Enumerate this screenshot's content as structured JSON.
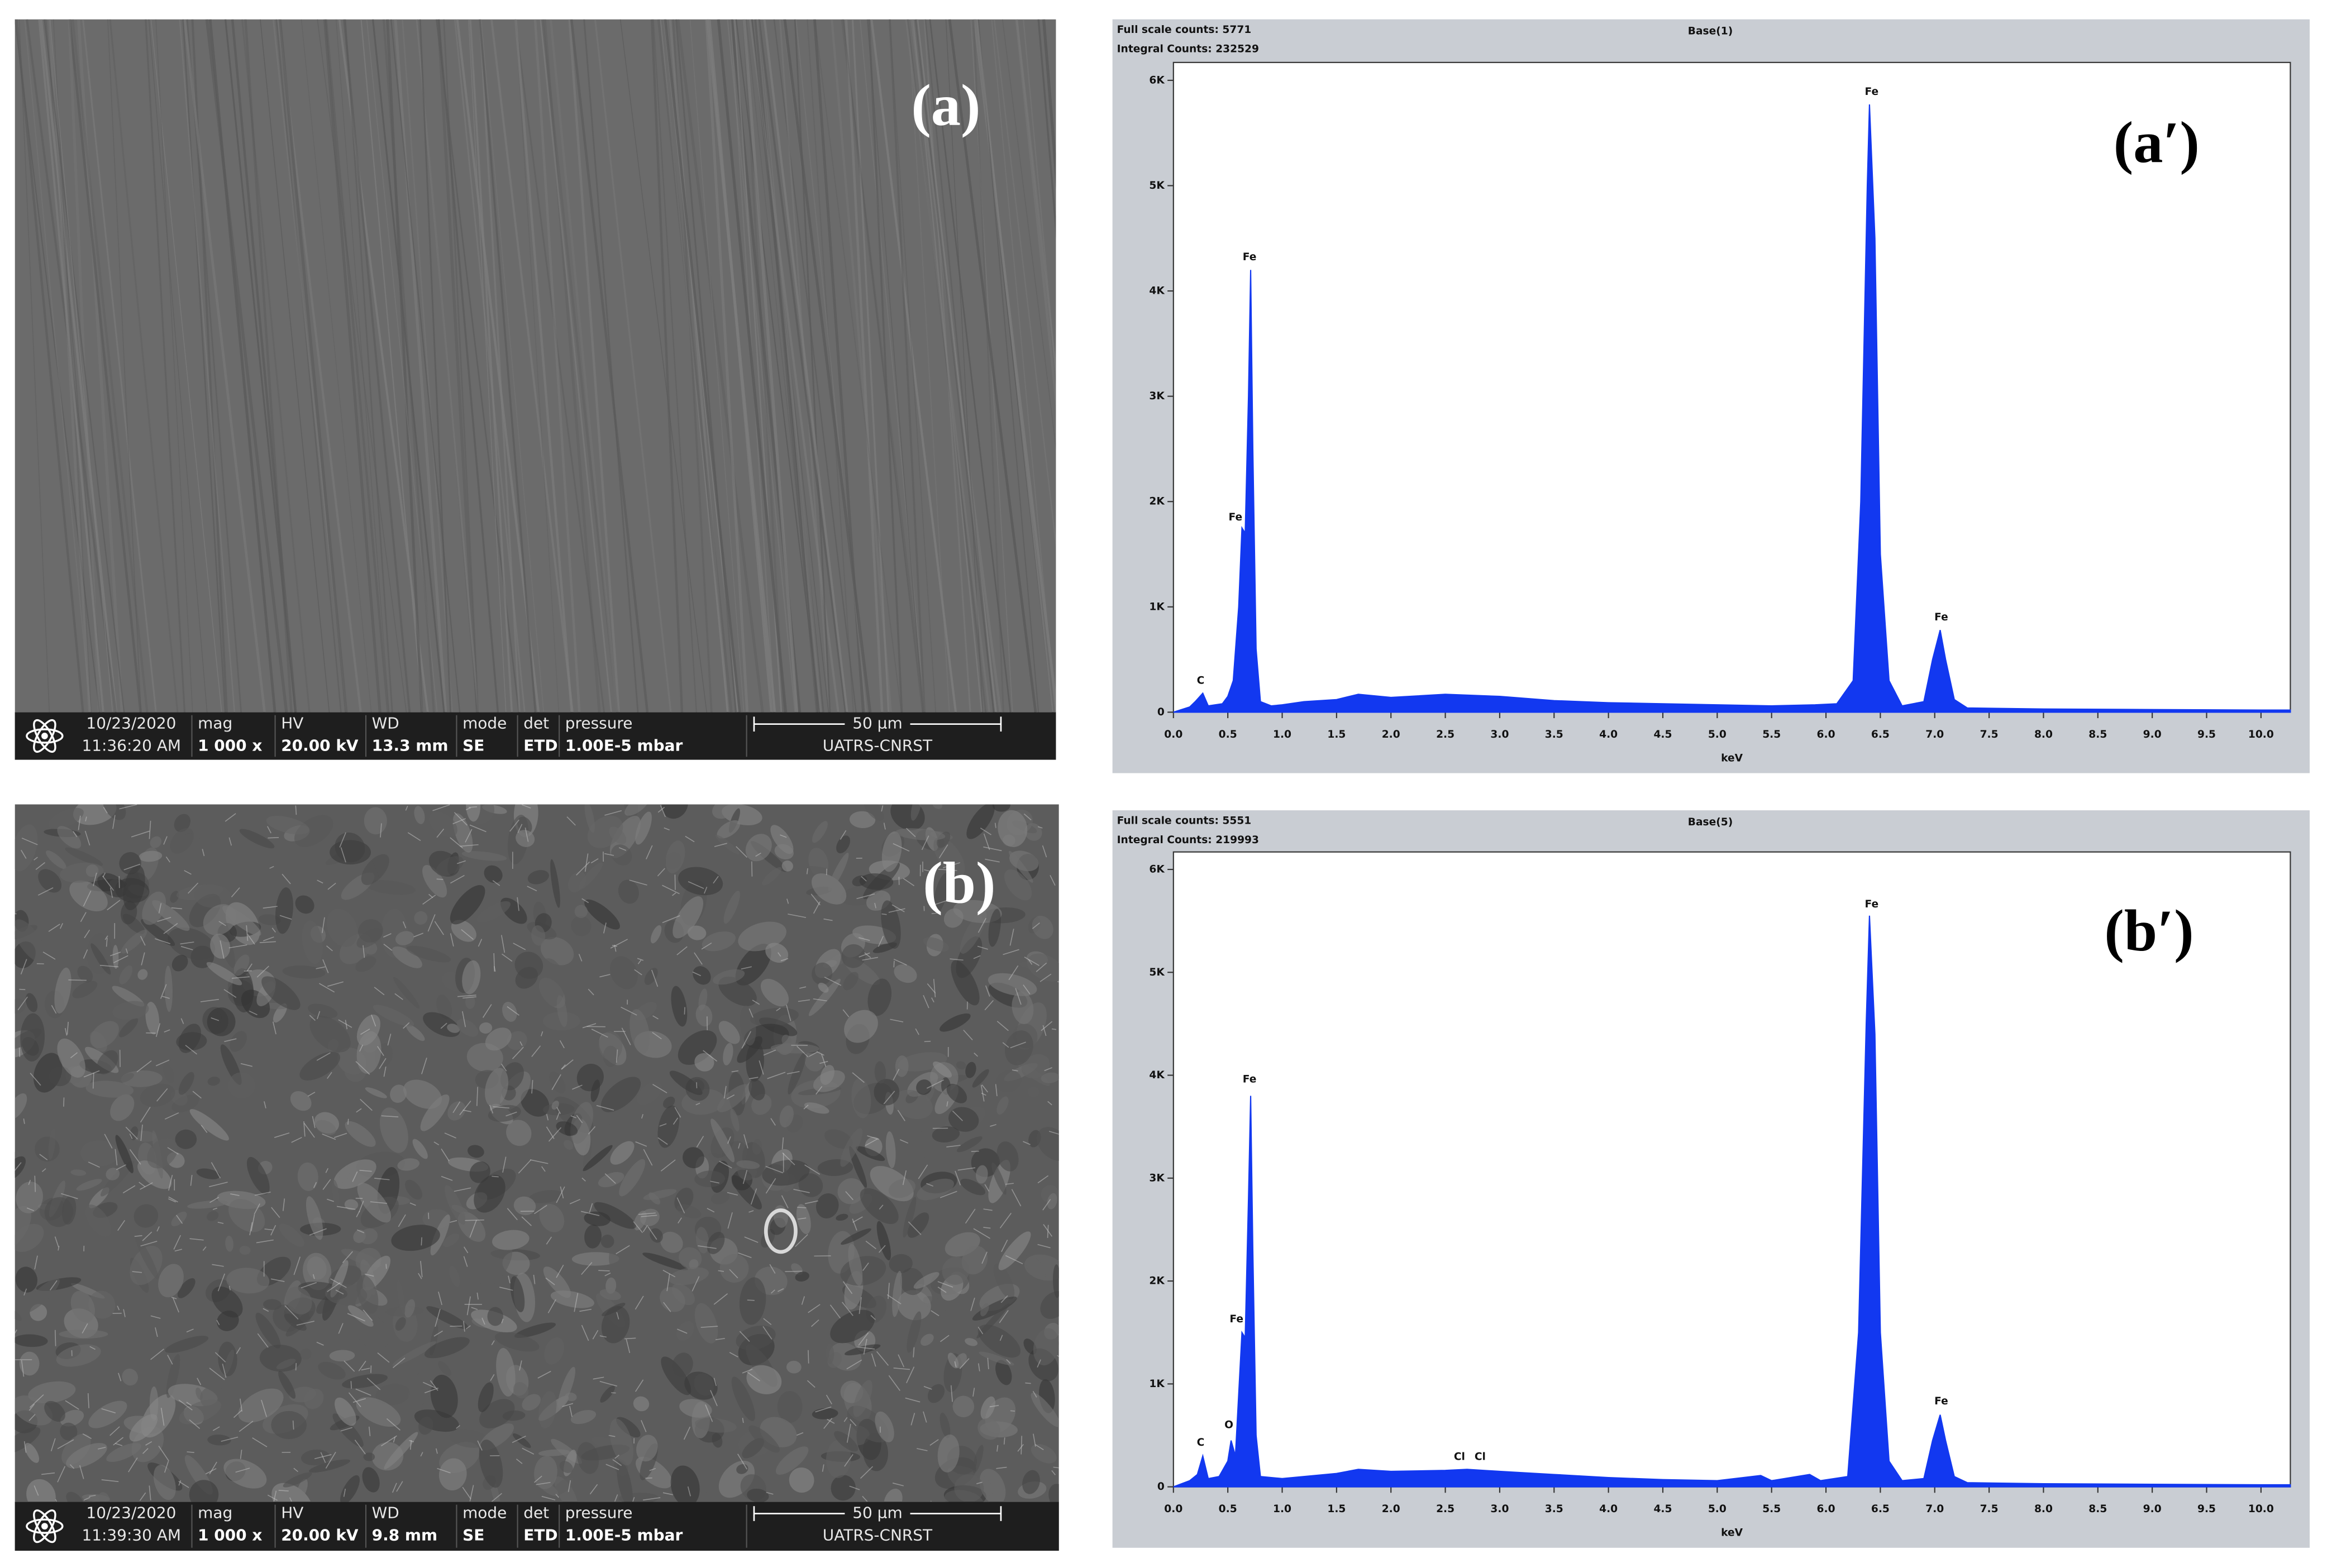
{
  "sem_panels": [
    {
      "label": "(a)",
      "date": "10/23/2020",
      "time": "11:36:20 AM",
      "fields": [
        {
          "name": "mag",
          "value": "1 000 x"
        },
        {
          "name": "HV",
          "value": "20.00 kV"
        },
        {
          "name": "WD",
          "value": "13.3 mm"
        },
        {
          "name": "mode",
          "value": "SE"
        },
        {
          "name": "det",
          "value": "ETD"
        },
        {
          "name": "pressure",
          "value": "1.00E-5 mbar"
        }
      ],
      "scale_bar": "50 µm",
      "lab": "UATRS-CNRST"
    },
    {
      "label": "(b)",
      "date": "10/23/2020",
      "time": "11:39:30 AM",
      "fields": [
        {
          "name": "mag",
          "value": "1 000 x"
        },
        {
          "name": "HV",
          "value": "20.00 kV"
        },
        {
          "name": "WD",
          "value": "9.8 mm"
        },
        {
          "name": "mode",
          "value": "SE"
        },
        {
          "name": "det",
          "value": "ETD"
        },
        {
          "name": "pressure",
          "value": "1.00E-5 mbar"
        }
      ],
      "scale_bar": "50 µm",
      "lab": "UATRS-CNRST"
    }
  ],
  "chart_data": [
    {
      "type": "spectrum",
      "title": "Base(1)",
      "full_scale": "Full scale counts: 5771",
      "integral": "Integral Counts: 232529",
      "panel_label": "(a′)",
      "x_label": "keV",
      "color": "#1238f0",
      "x": [
        0,
        0.15,
        0.2,
        0.27,
        0.32,
        0.45,
        0.5,
        0.55,
        0.6,
        0.63,
        0.66,
        0.69,
        0.71,
        0.73,
        0.76,
        0.8,
        0.9,
        1.0,
        1.2,
        1.5,
        1.7,
        2.0,
        2.5,
        3.0,
        3.5,
        4.0,
        4.5,
        5.0,
        5.5,
        5.9,
        6.1,
        6.25,
        6.32,
        6.38,
        6.4,
        6.45,
        6.5,
        6.58,
        6.7,
        6.9,
        6.98,
        7.05,
        7.1,
        7.18,
        7.3,
        8.0,
        9.0,
        10.0,
        10.27
      ],
      "values": [
        0,
        50,
        100,
        180,
        60,
        80,
        150,
        300,
        1000,
        1750,
        1700,
        3000,
        4200,
        2500,
        600,
        100,
        60,
        70,
        100,
        120,
        170,
        140,
        170,
        150,
        110,
        90,
        80,
        70,
        60,
        70,
        80,
        300,
        2000,
        5000,
        5771,
        4500,
        1500,
        300,
        60,
        100,
        500,
        780,
        500,
        120,
        40,
        30,
        25,
        20,
        20
      ],
      "peak_labels": [
        {
          "label": "C",
          "x": 0.25,
          "y": 300
        },
        {
          "label": "Fe",
          "x": 0.57,
          "y": 1850
        },
        {
          "label": "Fe",
          "x": 0.7,
          "y": 4320
        },
        {
          "label": "Fe",
          "x": 6.42,
          "y": 5890
        },
        {
          "label": "Fe",
          "x": 7.06,
          "y": 900
        }
      ],
      "xlim": [
        0,
        10.27
      ],
      "ylim": [
        0,
        6170
      ],
      "xticks": [
        {
          "value": 0,
          "label": "0.0"
        },
        0.5,
        {
          "value": 1,
          "label": "1.0"
        },
        1.5,
        {
          "value": 2,
          "label": "2.0"
        },
        2.5,
        {
          "value": 3,
          "label": "3.0"
        },
        3.5,
        {
          "value": 4,
          "label": "4.0"
        },
        4.5,
        {
          "value": 5,
          "label": "5.0"
        },
        5.5,
        {
          "value": 6,
          "label": "6.0"
        },
        6.5,
        {
          "value": 7,
          "label": "7.0"
        },
        7.5,
        {
          "value": 8,
          "label": "8.0"
        },
        8.5,
        {
          "value": 9,
          "label": "9.0"
        },
        9.5,
        {
          "value": 10,
          "label": "10.0"
        }
      ],
      "yticks": [
        0,
        {
          "value": 1000,
          "label": "1K"
        },
        {
          "value": 2000,
          "label": "2K"
        },
        {
          "value": 3000,
          "label": "3K"
        },
        {
          "value": 4000,
          "label": "4K"
        },
        {
          "value": 5000,
          "label": "5K"
        },
        {
          "value": 6000,
          "label": "6K"
        }
      ]
    },
    {
      "type": "spectrum",
      "title": "Base(5)",
      "full_scale": "Full scale counts: 5551",
      "integral": "Integral Counts: 219993",
      "panel_label": "(b′)",
      "x_label": "keV",
      "color": "#1238f0",
      "x": [
        0,
        0.15,
        0.22,
        0.27,
        0.32,
        0.42,
        0.5,
        0.53,
        0.57,
        0.6,
        0.63,
        0.66,
        0.69,
        0.71,
        0.73,
        0.76,
        0.8,
        1.0,
        1.5,
        1.7,
        2.0,
        2.5,
        2.7,
        3.0,
        3.5,
        4.0,
        4.5,
        5.0,
        5.4,
        5.5,
        5.85,
        5.95,
        6.2,
        6.3,
        6.37,
        6.4,
        6.45,
        6.5,
        6.58,
        6.7,
        6.9,
        6.98,
        7.05,
        7.1,
        7.18,
        7.3,
        8.0,
        9.0,
        10.0,
        10.27
      ],
      "values": [
        0,
        60,
        120,
        300,
        80,
        100,
        250,
        450,
        300,
        900,
        1500,
        1450,
        2800,
        3800,
        2300,
        500,
        100,
        80,
        130,
        170,
        150,
        160,
        170,
        150,
        120,
        90,
        70,
        60,
        110,
        60,
        120,
        60,
        100,
        1500,
        4500,
        5551,
        4400,
        1500,
        250,
        60,
        80,
        450,
        700,
        450,
        100,
        40,
        30,
        25,
        20,
        20
      ],
      "peak_labels": [
        {
          "label": "C",
          "x": 0.25,
          "y": 430
        },
        {
          "label": "O",
          "x": 0.51,
          "y": 600
        },
        {
          "label": "Fe",
          "x": 0.58,
          "y": 1630
        },
        {
          "label": "Fe",
          "x": 0.7,
          "y": 3960
        },
        {
          "label": "Cl",
          "x": 2.63,
          "y": 290
        },
        {
          "label": "Cl",
          "x": 2.82,
          "y": 290
        },
        {
          "label": "Fe",
          "x": 6.42,
          "y": 5660
        },
        {
          "label": "Fe",
          "x": 7.06,
          "y": 830
        }
      ],
      "xlim": [
        0,
        10.27
      ],
      "ylim": [
        0,
        6170
      ],
      "xticks": [
        {
          "value": 0,
          "label": "0.0"
        },
        0.5,
        {
          "value": 1,
          "label": "1.0"
        },
        1.5,
        {
          "value": 2,
          "label": "2.0"
        },
        2.5,
        {
          "value": 3,
          "label": "3.0"
        },
        3.5,
        {
          "value": 4,
          "label": "4.0"
        },
        4.5,
        {
          "value": 5,
          "label": "5.0"
        },
        5.5,
        {
          "value": 6,
          "label": "6.0"
        },
        6.5,
        {
          "value": 7,
          "label": "7.0"
        },
        7.5,
        {
          "value": 8,
          "label": "8.0"
        },
        8.5,
        {
          "value": 9,
          "label": "9.0"
        },
        9.5,
        {
          "value": 10,
          "label": "10.0"
        }
      ],
      "yticks": [
        0,
        {
          "value": 1000,
          "label": "1K"
        },
        {
          "value": 2000,
          "label": "2K"
        },
        {
          "value": 3000,
          "label": "3K"
        },
        {
          "value": 4000,
          "label": "4K"
        },
        {
          "value": 5000,
          "label": "5K"
        },
        {
          "value": 6000,
          "label": "6K"
        }
      ]
    }
  ]
}
